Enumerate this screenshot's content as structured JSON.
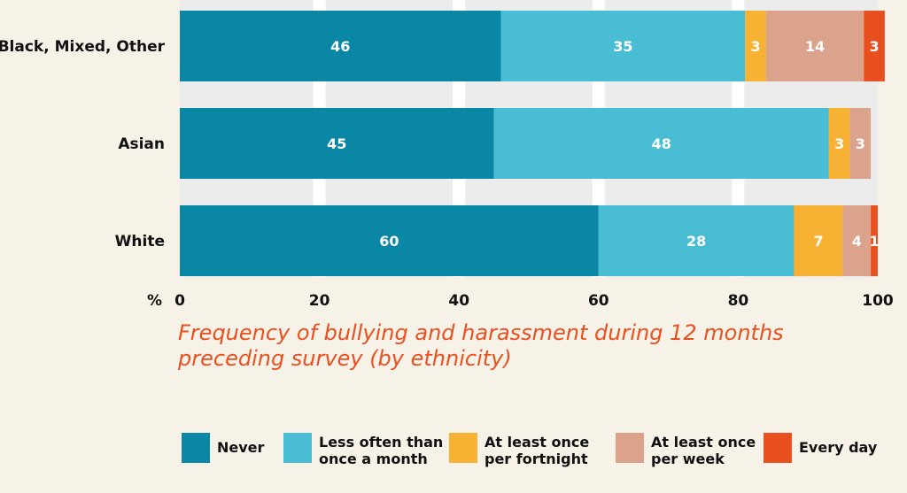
{
  "chart_data": {
    "type": "bar",
    "orientation": "horizontal",
    "stacked": true,
    "title": "Frequency of bullying and harassment during 12 months preceding survey (by ethnicity)",
    "xlabel": "%",
    "xlim": [
      0,
      100
    ],
    "xticks": [
      "0",
      "20",
      "40",
      "60",
      "80",
      "100"
    ],
    "categories": [
      "Black, Mixed, Other",
      "Asian",
      "White"
    ],
    "series": [
      {
        "name": "Never",
        "legend_label": "Never",
        "color": "#0b87a6",
        "values": [
          46,
          45,
          60
        ]
      },
      {
        "name": "Less often than once a month",
        "legend_label": "Less often than\nonce a month",
        "color": "#48bdd3",
        "values": [
          35,
          48,
          28
        ]
      },
      {
        "name": "At least once per fortnight",
        "legend_label": "At least once\nper fortnight",
        "color": "#f7b234",
        "values": [
          3,
          3,
          7
        ]
      },
      {
        "name": "At least once per week",
        "legend_label": "At least once\nper week",
        "color": "#dba38b",
        "values": [
          14,
          3,
          4
        ]
      },
      {
        "name": "Every day",
        "legend_label": "Every day",
        "color": "#e8501f",
        "values": [
          3,
          0,
          1
        ]
      }
    ],
    "grid": true,
    "legend_position": "bottom"
  }
}
